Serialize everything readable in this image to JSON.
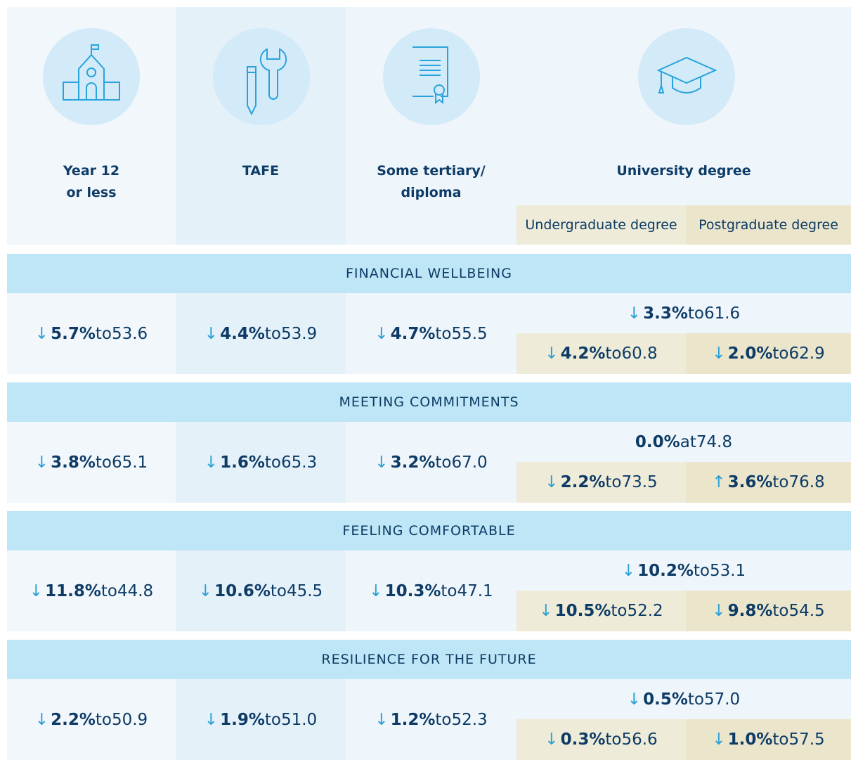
{
  "header": {
    "columns": [
      {
        "label": [
          "Year 12",
          "or less"
        ]
      },
      {
        "label": [
          "TAFE"
        ]
      },
      {
        "label": [
          "Some tertiary/",
          "diploma"
        ]
      },
      {
        "label": [
          "University degree"
        ]
      }
    ],
    "subcolumns": [
      "Undergraduate degree",
      "Postgraduate degree"
    ]
  },
  "sections": [
    {
      "title": "FINANCIAL WELLBEING",
      "cells": [
        {
          "arrow": "↓",
          "change": "5.7%",
          "word": "to",
          "value": "53.6"
        },
        {
          "arrow": "↓",
          "change": "4.4%",
          "word": "to",
          "value": "53.9"
        },
        {
          "arrow": "↓",
          "change": "4.7%",
          "word": "to",
          "value": "55.5"
        },
        {
          "arrow": "↓",
          "change": "3.3%",
          "word": "to",
          "value": "61.6"
        },
        {
          "arrow": "↓",
          "change": "4.2%",
          "word": "to",
          "value": "60.8"
        },
        {
          "arrow": "↓",
          "change": "2.0%",
          "word": "to",
          "value": "62.9"
        }
      ]
    },
    {
      "title": "MEETING COMMITMENTS",
      "cells": [
        {
          "arrow": "↓",
          "change": "3.8%",
          "word": "to",
          "value": "65.1"
        },
        {
          "arrow": "↓",
          "change": "1.6%",
          "word": "to",
          "value": "65.3"
        },
        {
          "arrow": "↓",
          "change": "3.2%",
          "word": "to",
          "value": "67.0"
        },
        {
          "change": "0.0%",
          "word": "at",
          "value": "74.8"
        },
        {
          "arrow": "↓",
          "change": "2.2%",
          "word": "to",
          "value": "73.5"
        },
        {
          "arrow": "↑",
          "change": "3.6%",
          "word": "to",
          "value": "76.8"
        }
      ]
    },
    {
      "title": "FEELING COMFORTABLE",
      "cells": [
        {
          "arrow": "↓",
          "change": "11.8%",
          "word": "to",
          "value": "44.8"
        },
        {
          "arrow": "↓",
          "change": "10.6%",
          "word": "to",
          "value": "45.5"
        },
        {
          "arrow": "↓",
          "change": "10.3%",
          "word": "to",
          "value": "47.1"
        },
        {
          "arrow": "↓",
          "change": "10.2%",
          "word": "to",
          "value": "53.1"
        },
        {
          "arrow": "↓",
          "change": "10.5%",
          "word": "to",
          "value": "52.2"
        },
        {
          "arrow": "↓",
          "change": "9.8%",
          "word": "to",
          "value": "54.5"
        }
      ]
    },
    {
      "title": "RESILIENCE FOR THE FUTURE",
      "cells": [
        {
          "arrow": "↓",
          "change": "2.2%",
          "word": "to",
          "value": "50.9"
        },
        {
          "arrow": "↓",
          "change": "1.9%",
          "word": "to",
          "value": "51.0"
        },
        {
          "arrow": "↓",
          "change": "1.2%",
          "word": "to",
          "value": "52.3"
        },
        {
          "arrow": "↓",
          "change": "0.5%",
          "word": "to",
          "value": "57.0"
        },
        {
          "arrow": "↓",
          "change": "0.3%",
          "word": "to",
          "value": "56.6"
        },
        {
          "arrow": "↓",
          "change": "1.0%",
          "word": "to",
          "value": "57.5"
        }
      ]
    }
  ]
}
